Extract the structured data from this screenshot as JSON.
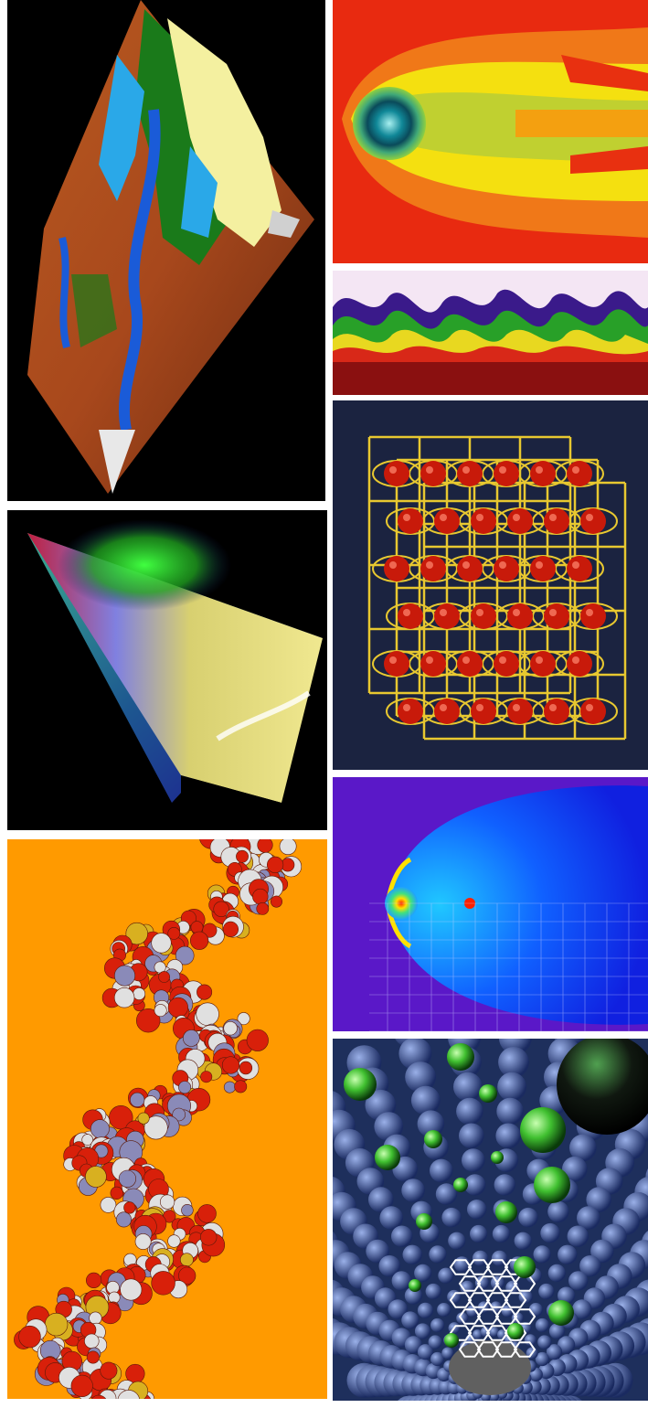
{
  "panels": [
    {
      "id": "terrain-map",
      "icon": "terrain-elevation-map-icon",
      "bg": "#000000"
    },
    {
      "id": "fluid-flow",
      "icon": "vortex-flow-icon",
      "bg": "#e82a10"
    },
    {
      "id": "turbulent-layer",
      "icon": "mixing-layer-icon",
      "bg": "#f4e6f4"
    },
    {
      "id": "crystal-lattice",
      "icon": "lattice-structure-icon",
      "bg": "#1b2340"
    },
    {
      "id": "volume-cone",
      "icon": "volume-render-icon",
      "bg": "#000000"
    },
    {
      "id": "shock-wave",
      "icon": "adaptive-mesh-icon",
      "bg": "#5a18c8"
    },
    {
      "id": "dna-helix",
      "icon": "dna-molecule-icon",
      "bg": "#ff9a00"
    },
    {
      "id": "nanotube",
      "icon": "nanotube-molecule-icon",
      "bg": "#1e2f5c"
    }
  ],
  "colors": {
    "terrain_brown": "#a8481c",
    "terrain_yellow": "#f4f0a0",
    "terrain_blue": "#1a5bd8",
    "terrain_cyan": "#2aa8e8",
    "terrain_green": "#1a7a1a",
    "flow_red": "#e82a10",
    "flow_yellow": "#f4e010",
    "lattice_gold": "#e8c830",
    "sphere_red": "#c81a0a",
    "dna_red": "#d8200a",
    "dna_white": "#e0e0e0",
    "dna_grey": "#8a8ab8",
    "dna_gold": "#d8b020",
    "nano_green": "#40c030",
    "nano_blue": "#3858a8"
  }
}
